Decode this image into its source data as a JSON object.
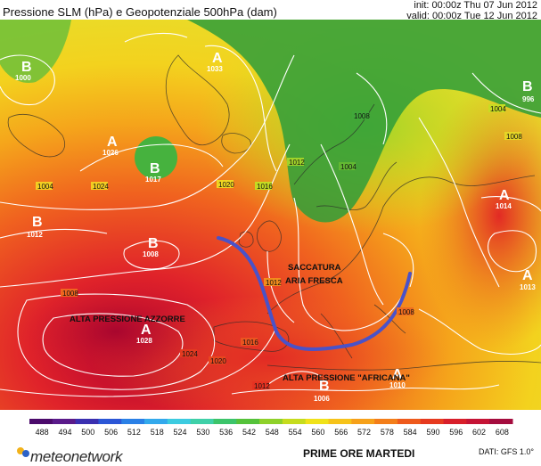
{
  "header": {
    "title": "Pressione SLM (hPa) e Geopotenziale 500hPa (dam)",
    "init": "init: 00:00z Thu 07 Jun 2012",
    "valid": "valid: 00:00z Tue 12 Jun 2012"
  },
  "pressure_centers": [
    {
      "letter": "B",
      "value": "1000"
    },
    {
      "letter": "A",
      "value": "1033"
    },
    {
      "letter": "A",
      "value": "1026"
    },
    {
      "letter": "B",
      "value": "1017"
    },
    {
      "letter": "B",
      "value": "1012"
    },
    {
      "letter": "B",
      "value": "1008"
    },
    {
      "letter": "A",
      "value": "1028"
    },
    {
      "letter": "B",
      "value": "996"
    },
    {
      "letter": "A",
      "value": "1014"
    },
    {
      "letter": "A",
      "value": "1013"
    },
    {
      "letter": "A",
      "value": "1010"
    },
    {
      "letter": "B",
      "value": "1006"
    }
  ],
  "isobar_labels": [
    "1004",
    "1008",
    "1012",
    "1016",
    "1020",
    "1024",
    "1008",
    "1004",
    "1008",
    "1012",
    "1016",
    "1020",
    "1024",
    "1012",
    "1004",
    "1008"
  ],
  "annotations": {
    "trough_line1": "SACCATURA",
    "trough_line2": "ARIA FRESCA",
    "azores": "ALTA PRESSIONE AZZORRE",
    "african": "ALTA PRESSIONE \"AFRICANA\""
  },
  "legend": {
    "ticks": [
      "488",
      "494",
      "500",
      "506",
      "512",
      "518",
      "524",
      "530",
      "536",
      "542",
      "548",
      "554",
      "560",
      "566",
      "572",
      "578",
      "584",
      "590",
      "596",
      "602",
      "608"
    ],
    "colors": [
      "#4b0a6b",
      "#5a1a8a",
      "#3a2fb0",
      "#2b56d6",
      "#2a80e6",
      "#33a9ec",
      "#3ccbe0",
      "#3fd0a8",
      "#3cc46a",
      "#55c23a",
      "#8fd12a",
      "#c6dc1e",
      "#f0e21a",
      "#f6c31a",
      "#f6a11a",
      "#f37e1a",
      "#ee5a1c",
      "#e63a1f",
      "#d81f2a",
      "#c51435",
      "#a40c3e"
    ]
  },
  "footer": {
    "brand": "meteonetwork",
    "caption": "PRIME ORE MARTEDI",
    "credit": "DATI:  GFS  1.0°"
  }
}
